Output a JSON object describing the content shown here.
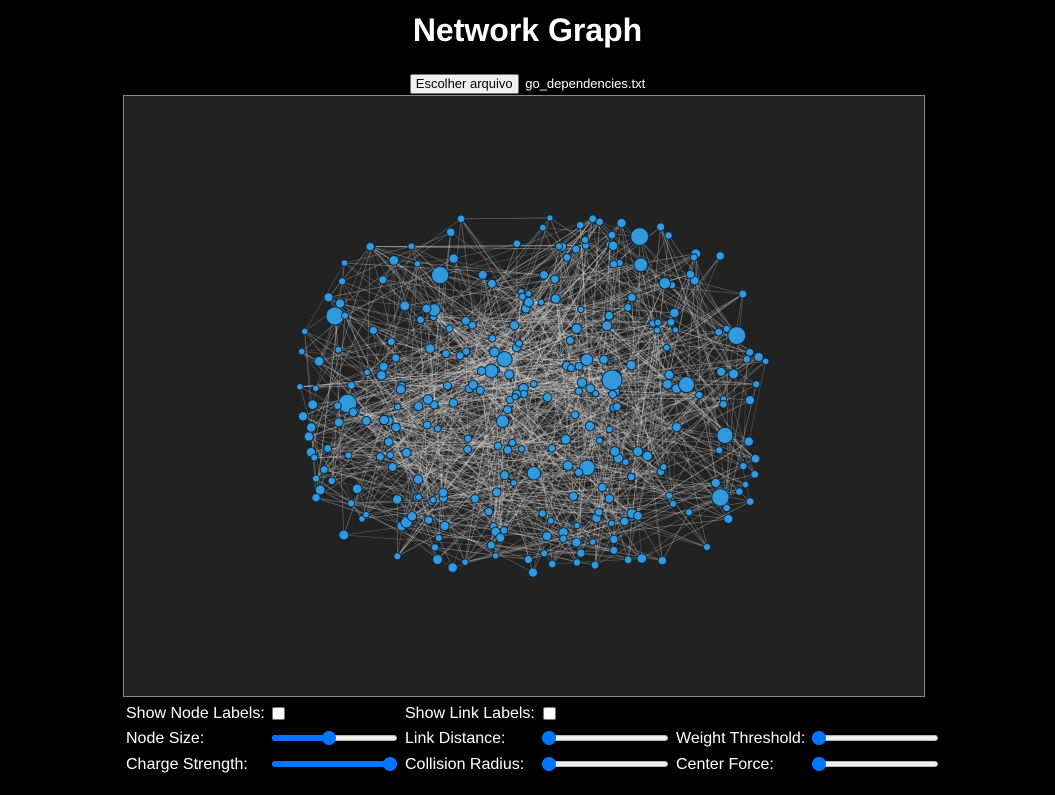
{
  "page": {
    "title": "Network Graph"
  },
  "file_input": {
    "button_label": "Escolher arquivo",
    "file_name": "go_dependencies.txt"
  },
  "graph": {
    "background": "#222222",
    "node_color": "#3399dd",
    "node_stroke": "#0b2a44",
    "link_color": "#d8d8d8"
  },
  "controls": {
    "show_node_labels": {
      "label": "Show Node Labels:",
      "checked": false
    },
    "show_link_labels": {
      "label": "Show Link Labels:",
      "checked": false
    },
    "node_size": {
      "label": "Node Size:",
      "value": 0.45
    },
    "link_distance": {
      "label": "Link Distance:",
      "value": 0.0
    },
    "weight_threshold": {
      "label": "Weight Threshold:",
      "value": 0.0
    },
    "charge_strength": {
      "label": "Charge Strength:",
      "value": 1.0
    },
    "collision_radius": {
      "label": "Collision Radius:",
      "value": 0.0
    },
    "center_force": {
      "label": "Center Force:",
      "value": 0.0
    },
    "accent_color": "#0075ff"
  }
}
